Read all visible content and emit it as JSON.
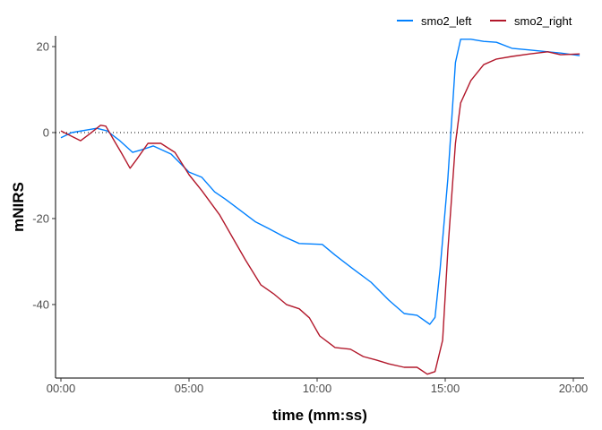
{
  "chart_data": {
    "type": "line",
    "title": "",
    "xlabel": "time (mm:ss)",
    "ylabel": "mNIRS",
    "x_unit": "minutes",
    "xlim": [
      -0.21,
      20.42
    ],
    "ylim": [
      -57.1,
      22.5
    ],
    "x_ticks": [
      0,
      5,
      10,
      15,
      20
    ],
    "x_tick_labels": [
      "00:00",
      "05:00",
      "10:00",
      "15:00",
      "20:00"
    ],
    "y_ticks": [
      20,
      0,
      -20,
      -40
    ],
    "y_tick_labels": [
      "20",
      "0",
      "-20",
      "-40"
    ],
    "grid": false,
    "reference_line": {
      "y": 0,
      "style": "dotted"
    },
    "legend_position": "top-right",
    "series": [
      {
        "name": "smo2_left",
        "color": "#0080ff",
        "points": [
          [
            0,
            -1.2
          ],
          [
            0.42,
            0
          ],
          [
            1.4,
            1
          ],
          [
            1.8,
            0.4
          ],
          [
            2.3,
            -1.9
          ],
          [
            2.8,
            -4.6
          ],
          [
            3.15,
            -4
          ],
          [
            3.6,
            -3.1
          ],
          [
            4.3,
            -5
          ],
          [
            5,
            -9.2
          ],
          [
            5.5,
            -10.4
          ],
          [
            6,
            -13.8
          ],
          [
            6.4,
            -15.4
          ],
          [
            7,
            -18.1
          ],
          [
            7.6,
            -20.8
          ],
          [
            8.1,
            -22.3
          ],
          [
            8.7,
            -24.2
          ],
          [
            9.3,
            -25.8
          ],
          [
            10.2,
            -26
          ],
          [
            10.7,
            -28.5
          ],
          [
            11.4,
            -31.7
          ],
          [
            12.1,
            -34.8
          ],
          [
            12.8,
            -39
          ],
          [
            13.4,
            -42.1
          ],
          [
            13.9,
            -42.5
          ],
          [
            14.4,
            -44.6
          ],
          [
            14.6,
            -43
          ],
          [
            14.8,
            -31.7
          ],
          [
            15.1,
            -10.8
          ],
          [
            15.4,
            16.3
          ],
          [
            15.6,
            21.7
          ],
          [
            16,
            21.7
          ],
          [
            16.5,
            21.2
          ],
          [
            17,
            21
          ],
          [
            17.6,
            19.6
          ],
          [
            18.3,
            19.2
          ],
          [
            19,
            18.8
          ],
          [
            19.5,
            18.5
          ],
          [
            20.25,
            17.9
          ]
        ]
      },
      {
        "name": "smo2_right",
        "color": "#b2182b",
        "points": [
          [
            0,
            0.4
          ],
          [
            0.77,
            -1.9
          ],
          [
            1.1,
            -0.4
          ],
          [
            1.55,
            1.7
          ],
          [
            1.75,
            1.5
          ],
          [
            2.1,
            -2.1
          ],
          [
            2.35,
            -4.6
          ],
          [
            2.7,
            -8.3
          ],
          [
            2.95,
            -6.3
          ],
          [
            3.4,
            -2.5
          ],
          [
            3.9,
            -2.5
          ],
          [
            4.45,
            -4.6
          ],
          [
            5,
            -9.8
          ],
          [
            5.5,
            -13.5
          ],
          [
            6.2,
            -19.2
          ],
          [
            6.7,
            -24.4
          ],
          [
            7.2,
            -29.6
          ],
          [
            7.8,
            -35.4
          ],
          [
            8.3,
            -37.5
          ],
          [
            8.8,
            -40
          ],
          [
            9.3,
            -41
          ],
          [
            9.7,
            -43.1
          ],
          [
            10.1,
            -47.3
          ],
          [
            10.7,
            -50
          ],
          [
            11.3,
            -50.4
          ],
          [
            11.8,
            -52.1
          ],
          [
            12.3,
            -52.9
          ],
          [
            12.8,
            -53.8
          ],
          [
            13.4,
            -54.6
          ],
          [
            13.9,
            -54.6
          ],
          [
            14.3,
            -56.2
          ],
          [
            14.6,
            -55.6
          ],
          [
            14.9,
            -48.3
          ],
          [
            15.1,
            -27.5
          ],
          [
            15.4,
            -2.5
          ],
          [
            15.6,
            6.9
          ],
          [
            16,
            12.1
          ],
          [
            16.5,
            15.8
          ],
          [
            17,
            17.1
          ],
          [
            17.6,
            17.7
          ],
          [
            18.3,
            18.3
          ],
          [
            19,
            18.8
          ],
          [
            19.5,
            18.1
          ],
          [
            20.25,
            18.3
          ]
        ]
      }
    ]
  }
}
